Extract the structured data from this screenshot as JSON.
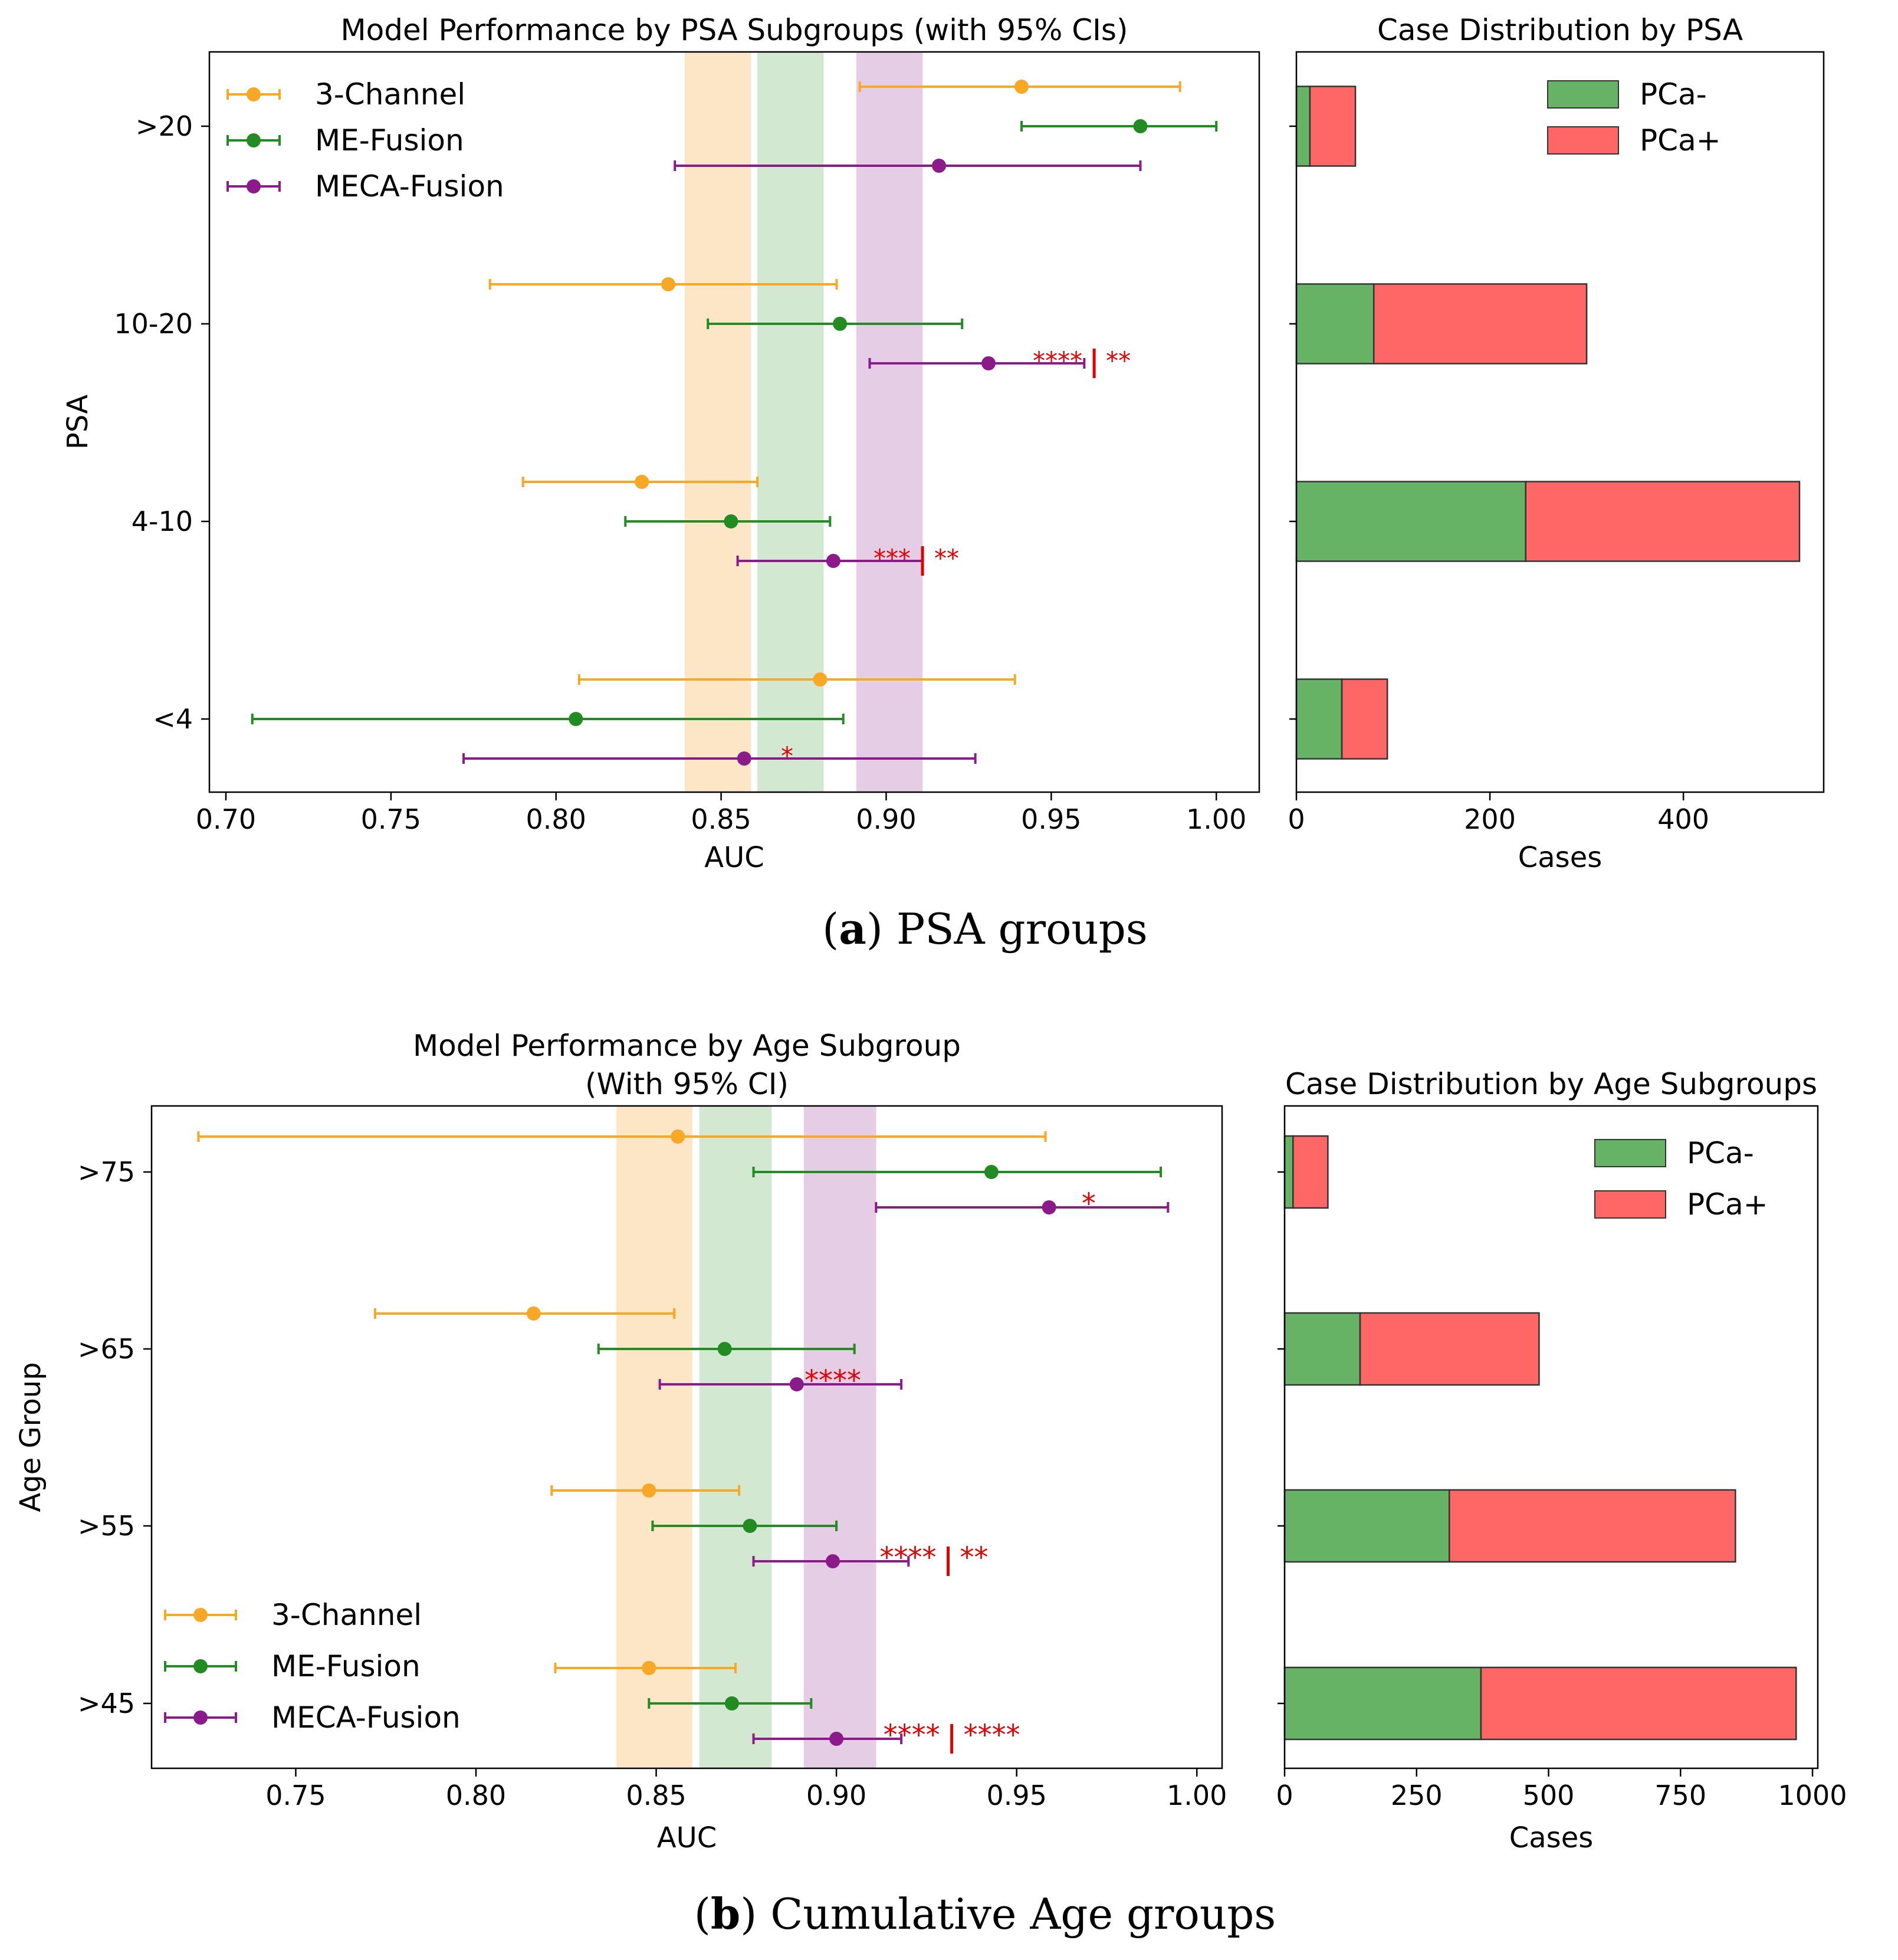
{
  "panels": [
    {
      "caption_letter": "(a)",
      "caption_text": "PSA groups",
      "forest": {
        "title_lines": [
          "Model Performance by PSA Subgroups (with 95% CIs)"
        ],
        "xlabel": "AUC",
        "ylabel": "PSA",
        "xlim": [
          0.695,
          1.013
        ],
        "xticks": [
          0.7,
          0.75,
          0.8,
          0.85,
          0.9,
          0.95,
          1.0
        ],
        "xtick_labels": [
          "0.70",
          "0.75",
          "0.80",
          "0.85",
          "0.90",
          "0.95",
          "1.00"
        ],
        "groups": [
          ">20",
          "10-20",
          "4-10",
          "<4"
        ],
        "legend_position": "top-left",
        "bands": [
          {
            "model": "3-Channel",
            "range": [
              0.839,
              0.859
            ],
            "color": "#FDE6C5"
          },
          {
            "model": "ME-Fusion",
            "range": [
              0.861,
              0.881
            ],
            "color": "#D3E8D0"
          },
          {
            "model": "MECA-Fusion",
            "range": [
              0.891,
              0.911
            ],
            "color": "#E6CDE6"
          }
        ],
        "series": [
          {
            "name": "3-Channel",
            "color": "#F9A825",
            "points": [
              {
                "group": ">20",
                "auc": 0.941,
                "ci": [
                  0.892,
                  0.989
                ]
              },
              {
                "group": "10-20",
                "auc": 0.834,
                "ci": [
                  0.78,
                  0.885
                ]
              },
              {
                "group": "4-10",
                "auc": 0.826,
                "ci": [
                  0.79,
                  0.861
                ]
              },
              {
                "group": "<4",
                "auc": 0.88,
                "ci": [
                  0.807,
                  0.939
                ]
              }
            ]
          },
          {
            "name": "ME-Fusion",
            "color": "#228B22",
            "points": [
              {
                "group": ">20",
                "auc": 0.977,
                "ci": [
                  0.941,
                  1.0
                ]
              },
              {
                "group": "10-20",
                "auc": 0.886,
                "ci": [
                  0.846,
                  0.923
                ]
              },
              {
                "group": "4-10",
                "auc": 0.853,
                "ci": [
                  0.821,
                  0.883
                ]
              },
              {
                "group": "<4",
                "auc": 0.806,
                "ci": [
                  0.708,
                  0.887
                ]
              }
            ]
          },
          {
            "name": "MECA-Fusion",
            "color": "#8B1A8B",
            "points": [
              {
                "group": ">20",
                "auc": 0.916,
                "ci": [
                  0.836,
                  0.977
                ]
              },
              {
                "group": "10-20",
                "auc": 0.931,
                "ci": [
                  0.895,
                  0.96
                ]
              },
              {
                "group": "4-10",
                "auc": 0.884,
                "ci": [
                  0.855,
                  0.911
                ]
              },
              {
                "group": "<4",
                "auc": 0.857,
                "ci": [
                  0.772,
                  0.927
                ]
              }
            ]
          }
        ],
        "annotations": [
          {
            "group": "10-20",
            "series": "MECA-Fusion",
            "left": "****",
            "right": "**",
            "divider": true,
            "x": 0.963
          },
          {
            "group": "4-10",
            "series": "MECA-Fusion",
            "left": "***",
            "right": "**",
            "divider": true,
            "x": 0.911
          },
          {
            "group": "<4",
            "series": "MECA-Fusion",
            "left": "*",
            "right": "",
            "divider": false,
            "x": 0.87
          }
        ]
      },
      "bars": {
        "title": "Case Distribution by PSA",
        "xlabel": "Cases",
        "xlim": [
          0,
          545
        ],
        "xticks": [
          0,
          200,
          400
        ],
        "xtick_labels": [
          "0",
          "200",
          "400"
        ],
        "legend_position": "top-right",
        "groups": [
          ">20",
          "10-20",
          "4-10",
          "<4"
        ],
        "neg_label": "PCa-",
        "pos_label": "PCa+",
        "neg_color": "#66B366",
        "pos_color": "#FF6666",
        "neg": [
          14,
          80,
          237,
          47
        ],
        "pos": [
          47,
          220,
          283,
          47
        ]
      }
    },
    {
      "caption_letter": "(b)",
      "caption_text": "Cumulative Age groups",
      "forest": {
        "title_lines": [
          "Model Performance by Age Subgroup",
          "(With 95% CI)"
        ],
        "xlabel": "AUC",
        "ylabel": "Age Group",
        "xlim": [
          0.71,
          1.007
        ],
        "xticks": [
          0.75,
          0.8,
          0.85,
          0.9,
          0.95,
          1.0
        ],
        "xtick_labels": [
          "0.75",
          "0.80",
          "0.85",
          "0.90",
          "0.95",
          "1.00"
        ],
        "groups": [
          ">75",
          ">65",
          ">55",
          ">45"
        ],
        "legend_position": "bottom-left",
        "bands": [
          {
            "model": "3-Channel",
            "range": [
              0.839,
              0.86
            ],
            "color": "#FDE6C5"
          },
          {
            "model": "ME-Fusion",
            "range": [
              0.862,
              0.882
            ],
            "color": "#D3E8D0"
          },
          {
            "model": "MECA-Fusion",
            "range": [
              0.891,
              0.911
            ],
            "color": "#E6CDE6"
          }
        ],
        "series": [
          {
            "name": "3-Channel",
            "color": "#F9A825",
            "points": [
              {
                "group": ">75",
                "auc": 0.856,
                "ci": [
                  0.723,
                  0.958
                ]
              },
              {
                "group": ">65",
                "auc": 0.816,
                "ci": [
                  0.772,
                  0.855
                ]
              },
              {
                "group": ">55",
                "auc": 0.848,
                "ci": [
                  0.821,
                  0.873
                ]
              },
              {
                "group": ">45",
                "auc": 0.848,
                "ci": [
                  0.822,
                  0.872
                ]
              }
            ]
          },
          {
            "name": "ME-Fusion",
            "color": "#228B22",
            "points": [
              {
                "group": ">75",
                "auc": 0.943,
                "ci": [
                  0.877,
                  0.99
                ]
              },
              {
                "group": ">65",
                "auc": 0.869,
                "ci": [
                  0.834,
                  0.905
                ]
              },
              {
                "group": ">55",
                "auc": 0.876,
                "ci": [
                  0.849,
                  0.9
                ]
              },
              {
                "group": ">45",
                "auc": 0.871,
                "ci": [
                  0.848,
                  0.893
                ]
              }
            ]
          },
          {
            "name": "MECA-Fusion",
            "color": "#8B1A8B",
            "points": [
              {
                "group": ">75",
                "auc": 0.959,
                "ci": [
                  0.911,
                  0.992
                ]
              },
              {
                "group": ">65",
                "auc": 0.889,
                "ci": [
                  0.851,
                  0.918
                ]
              },
              {
                "group": ">55",
                "auc": 0.899,
                "ci": [
                  0.877,
                  0.92
                ]
              },
              {
                "group": ">45",
                "auc": 0.9,
                "ci": [
                  0.877,
                  0.918
                ]
              }
            ]
          }
        ],
        "annotations": [
          {
            "group": ">75",
            "series": "MECA-Fusion",
            "left": "*",
            "right": "",
            "divider": false,
            "x": 0.97
          },
          {
            "group": ">65",
            "series": "MECA-Fusion",
            "left": "****",
            "right": "",
            "divider": false,
            "x": 0.899
          },
          {
            "group": ">55",
            "series": "MECA-Fusion",
            "left": "****",
            "right": "**",
            "divider": true,
            "x": 0.931
          },
          {
            "group": ">45",
            "series": "MECA-Fusion",
            "left": "****",
            "right": "****",
            "divider": true,
            "x": 0.932
          }
        ]
      },
      "bars": {
        "title": "Case Distribution by Age Subgroups",
        "xlabel": "Cases",
        "xlim": [
          0,
          1010
        ],
        "xticks": [
          0,
          250,
          500,
          750,
          1000
        ],
        "xtick_labels": [
          "0",
          "250",
          "500",
          "750",
          "1000"
        ],
        "legend_position": "top-right",
        "groups": [
          ">75",
          ">65",
          ">55",
          ">45"
        ],
        "neg_label": "PCa-",
        "pos_label": "PCa+",
        "neg_color": "#66B366",
        "pos_color": "#FF6666",
        "neg": [
          16,
          143,
          312,
          372
        ],
        "pos": [
          66,
          339,
          542,
          597
        ]
      }
    }
  ],
  "chart_data": [
    {
      "type": "scatter",
      "title": "Model Performance by PSA Subgroups (with 95% CIs)",
      "xlabel": "AUC",
      "ylabel": "PSA",
      "categories": [
        ">20",
        "10-20",
        "4-10",
        "<4"
      ],
      "series": [
        {
          "name": "3-Channel",
          "values": [
            0.941,
            0.834,
            0.826,
            0.88
          ],
          "ci_low": [
            0.892,
            0.78,
            0.79,
            0.807
          ],
          "ci_high": [
            0.989,
            0.885,
            0.861,
            0.939
          ]
        },
        {
          "name": "ME-Fusion",
          "values": [
            0.977,
            0.886,
            0.853,
            0.806
          ],
          "ci_low": [
            0.941,
            0.846,
            0.821,
            0.708
          ],
          "ci_high": [
            1.0,
            0.923,
            0.883,
            0.887
          ]
        },
        {
          "name": "MECA-Fusion",
          "values": [
            0.916,
            0.931,
            0.884,
            0.857
          ],
          "ci_low": [
            0.836,
            0.895,
            0.855,
            0.772
          ],
          "ci_high": [
            0.977,
            0.96,
            0.911,
            0.927
          ]
        }
      ]
    },
    {
      "type": "bar",
      "title": "Case Distribution by PSA",
      "xlabel": "Cases",
      "categories": [
        ">20",
        "10-20",
        "4-10",
        "<4"
      ],
      "series": [
        {
          "name": "PCa-",
          "values": [
            14,
            80,
            237,
            47
          ]
        },
        {
          "name": "PCa+",
          "values": [
            47,
            220,
            283,
            47
          ]
        }
      ]
    },
    {
      "type": "scatter",
      "title": "Model Performance by Age Subgroup (With 95% CI)",
      "xlabel": "AUC",
      "ylabel": "Age Group",
      "categories": [
        ">75",
        ">65",
        ">55",
        ">45"
      ],
      "series": [
        {
          "name": "3-Channel",
          "values": [
            0.856,
            0.816,
            0.848,
            0.848
          ],
          "ci_low": [
            0.723,
            0.772,
            0.821,
            0.822
          ],
          "ci_high": [
            0.958,
            0.855,
            0.873,
            0.872
          ]
        },
        {
          "name": "ME-Fusion",
          "values": [
            0.943,
            0.869,
            0.876,
            0.871
          ],
          "ci_low": [
            0.877,
            0.834,
            0.849,
            0.848
          ],
          "ci_high": [
            0.99,
            0.905,
            0.9,
            0.893
          ]
        },
        {
          "name": "MECA-Fusion",
          "values": [
            0.959,
            0.889,
            0.899,
            0.9
          ],
          "ci_low": [
            0.911,
            0.851,
            0.877,
            0.877
          ],
          "ci_high": [
            0.992,
            0.918,
            0.92,
            0.918
          ]
        }
      ]
    },
    {
      "type": "bar",
      "title": "Case Distribution by Age Subgroups",
      "xlabel": "Cases",
      "categories": [
        ">75",
        ">65",
        ">55",
        ">45"
      ],
      "series": [
        {
          "name": "PCa-",
          "values": [
            16,
            143,
            312,
            372
          ]
        },
        {
          "name": "PCa+",
          "values": [
            66,
            339,
            542,
            597
          ]
        }
      ]
    }
  ]
}
